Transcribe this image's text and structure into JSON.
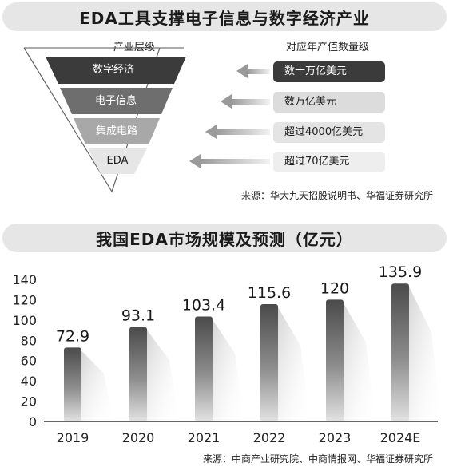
{
  "banner1": {
    "title": "EDA工具支撑电子信息与数字经济产业"
  },
  "pyramid": {
    "header_left": "产业层级",
    "header_right": "对应年产值数量级",
    "levels": [
      {
        "label": "数字经济",
        "value": "数十万亿美元",
        "band_color": "#3b3b3b",
        "label_color": "#ffffff",
        "box_color": "#3b3b3b",
        "box_text_color": "#ffffff"
      },
      {
        "label": "电子信息",
        "value": "数万亿美元",
        "band_color": "#6e6e6e",
        "label_color": "#ffffff",
        "box_color": "#dcdcdc",
        "box_text_color": "#1f1f1f"
      },
      {
        "label": "集成电路",
        "value": "超过4000亿美元",
        "band_color": "#a8a8a8",
        "label_color": "#ffffff",
        "box_color": "#e4e4e4",
        "box_text_color": "#1f1f1f"
      },
      {
        "label": "EDA",
        "value": "超过70亿美元",
        "band_color": "#e6e6e6",
        "label_color": "#1f1f1f",
        "box_color": "#eeeeee",
        "box_text_color": "#1f1f1f"
      }
    ],
    "source": "来源：华大九天招股说明书、华福证券研究所"
  },
  "banner2": {
    "title": "我国EDA市场规模及预测（亿元）"
  },
  "chart_data": {
    "type": "bar",
    "title": "我国EDA市场规模及预测（亿元）",
    "categories": [
      "2019",
      "2020",
      "2021",
      "2022",
      "2023",
      "2024E"
    ],
    "values": [
      72.9,
      93.1,
      103.4,
      115.6,
      120,
      135.9
    ],
    "value_labels": [
      "72.9",
      "93.1",
      "103.4",
      "115.6",
      "120",
      "135.9"
    ],
    "y_ticks": [
      "0",
      "20",
      "40",
      "60",
      "80",
      "100",
      "120",
      "140"
    ],
    "ylim": [
      0,
      140
    ],
    "grid": false,
    "bar_color": "#555555"
  },
  "chart_source": "来源：中商产业研究院、中商情报网、华福证券研究所"
}
